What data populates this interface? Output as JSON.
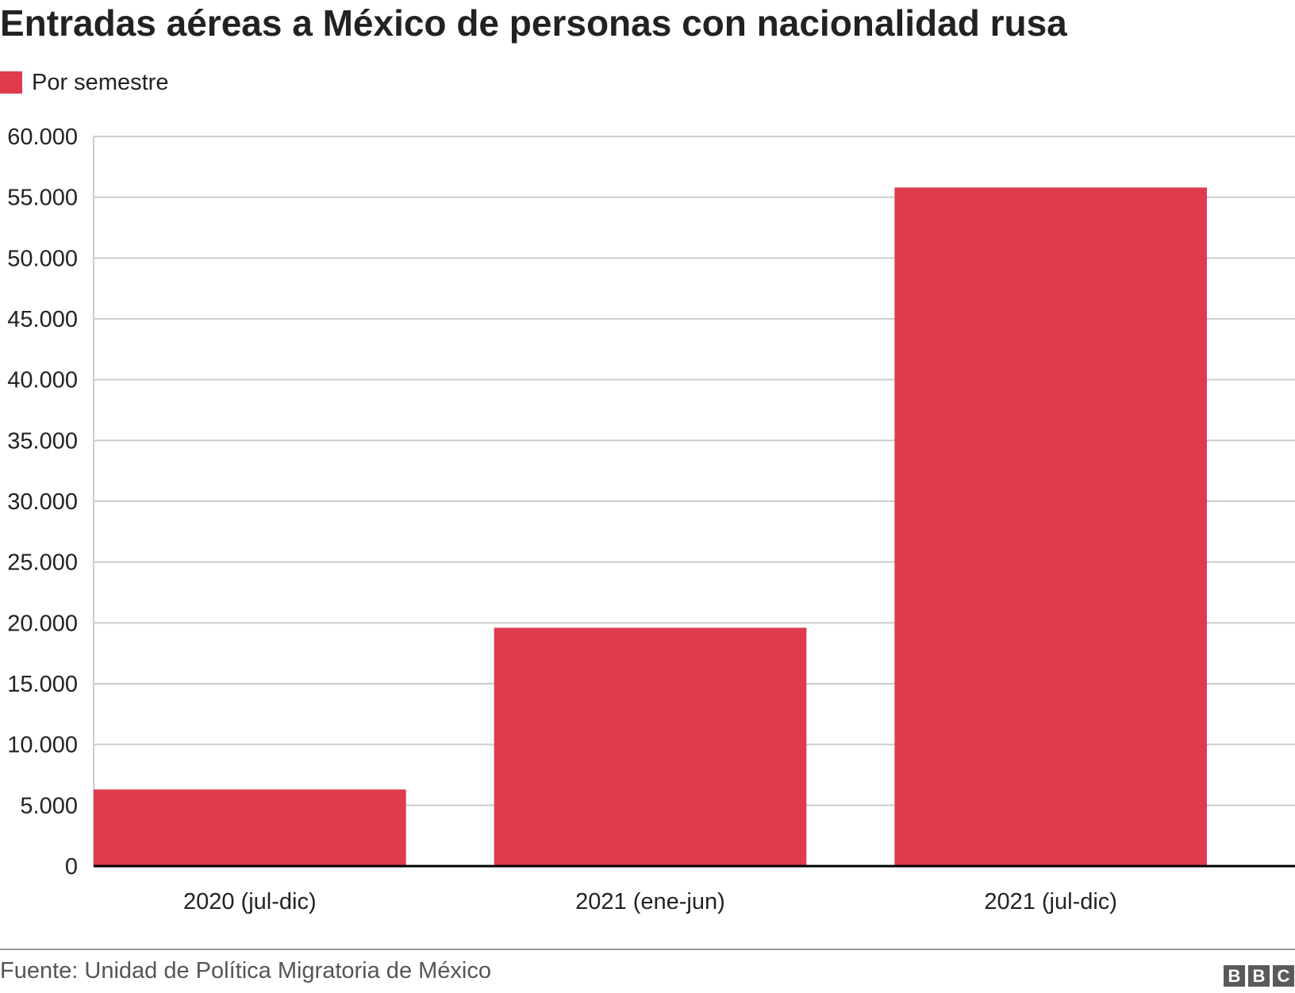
{
  "title": "Entradas aéreas a México de personas con nacionalidad rusa",
  "legend": {
    "label": "Por semestre",
    "color": "#df3b4d"
  },
  "source": "Fuente: Unidad de Política Migratoria de México",
  "logo": {
    "letters": [
      "B",
      "B",
      "C"
    ]
  },
  "colors": {
    "bar": "#df3b4d",
    "grid": "#cccccc",
    "baseline": "#000000",
    "text": "#222222"
  },
  "chart_data": {
    "type": "bar",
    "title": "Entradas aéreas a México de personas con nacionalidad rusa",
    "categories": [
      "2020 (jul-dic)",
      "2021 (ene-jun)",
      "2021 (jul-dic)"
    ],
    "series": [
      {
        "name": "Por semestre",
        "values": [
          6300,
          19600,
          55800
        ]
      }
    ],
    "ylim": [
      0,
      60000
    ],
    "yticks": [
      0,
      5000,
      10000,
      15000,
      20000,
      25000,
      30000,
      35000,
      40000,
      45000,
      50000,
      55000,
      60000
    ],
    "ytick_labels": [
      "0",
      "5.000",
      "10.000",
      "15.000",
      "20.000",
      "25.000",
      "30.000",
      "35.000",
      "40.000",
      "45.000",
      "50.000",
      "55.000",
      "60.000"
    ],
    "grid": true,
    "legend_position": "top-left",
    "xlabel": "",
    "ylabel": ""
  }
}
